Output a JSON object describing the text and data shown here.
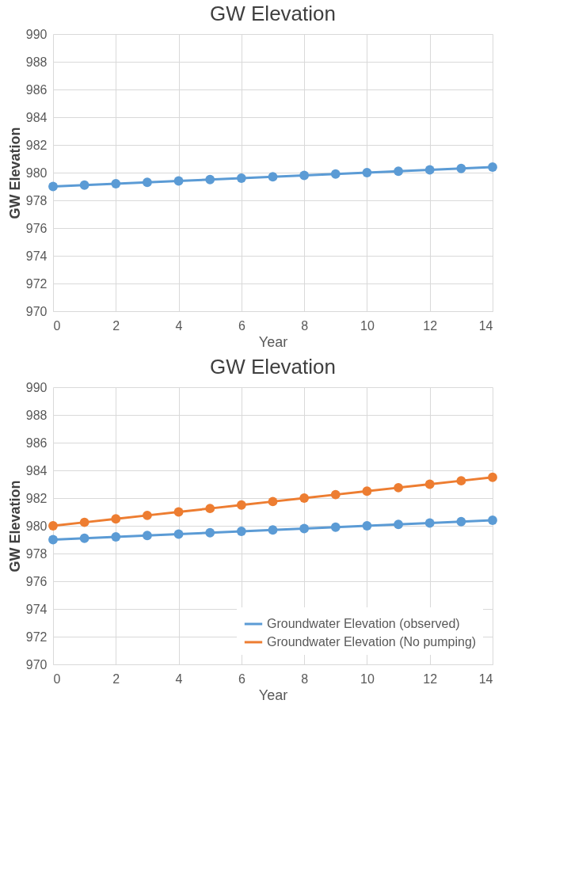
{
  "chart_data": [
    {
      "type": "line",
      "title": "GW Elevation",
      "xlabel": "Year",
      "ylabel": "GW Elevation",
      "x": [
        0,
        1,
        2,
        3,
        4,
        5,
        6,
        7,
        8,
        9,
        10,
        11,
        12,
        13,
        14
      ],
      "series": [
        {
          "color": "#5b9bd5",
          "values": [
            979.0,
            979.1,
            979.2,
            979.3,
            979.4,
            979.5,
            979.6,
            979.7,
            979.8,
            979.9,
            980.0,
            980.1,
            980.2,
            980.3,
            980.4
          ]
        }
      ],
      "xlim": [
        0,
        14
      ],
      "xticks": [
        0,
        2,
        4,
        6,
        8,
        10,
        12,
        14
      ],
      "ylim": [
        970,
        990
      ],
      "yticks": [
        970,
        972,
        974,
        976,
        978,
        980,
        982,
        984,
        986,
        988,
        990
      ],
      "grid": true,
      "marker": "circle",
      "line_style": "solid",
      "legend": false
    },
    {
      "type": "line",
      "title": "GW Elevation",
      "xlabel": "Year",
      "ylabel": "GW Elevation",
      "x": [
        0,
        1,
        2,
        3,
        4,
        5,
        6,
        7,
        8,
        9,
        10,
        11,
        12,
        13,
        14
      ],
      "series": [
        {
          "name": "Groundwater Elevation (observed)",
          "color": "#5b9bd5",
          "values": [
            979.0,
            979.1,
            979.2,
            979.3,
            979.4,
            979.5,
            979.6,
            979.7,
            979.8,
            979.9,
            980.0,
            980.1,
            980.2,
            980.3,
            980.4
          ]
        },
        {
          "name": "Groundwater Elevation (No pumping)",
          "color": "#ed7d31",
          "values": [
            980.0,
            980.25,
            980.5,
            980.75,
            981.0,
            981.25,
            981.5,
            981.75,
            982.0,
            982.25,
            982.5,
            982.75,
            983.0,
            983.25,
            983.5
          ]
        }
      ],
      "xlim": [
        0,
        14
      ],
      "xticks": [
        0,
        2,
        4,
        6,
        8,
        10,
        12,
        14
      ],
      "ylim": [
        970,
        990
      ],
      "yticks": [
        970,
        972,
        974,
        976,
        978,
        980,
        982,
        984,
        986,
        988,
        990
      ],
      "grid": true,
      "marker": "circle",
      "line_style": "solid",
      "legend": "bottom right"
    }
  ]
}
